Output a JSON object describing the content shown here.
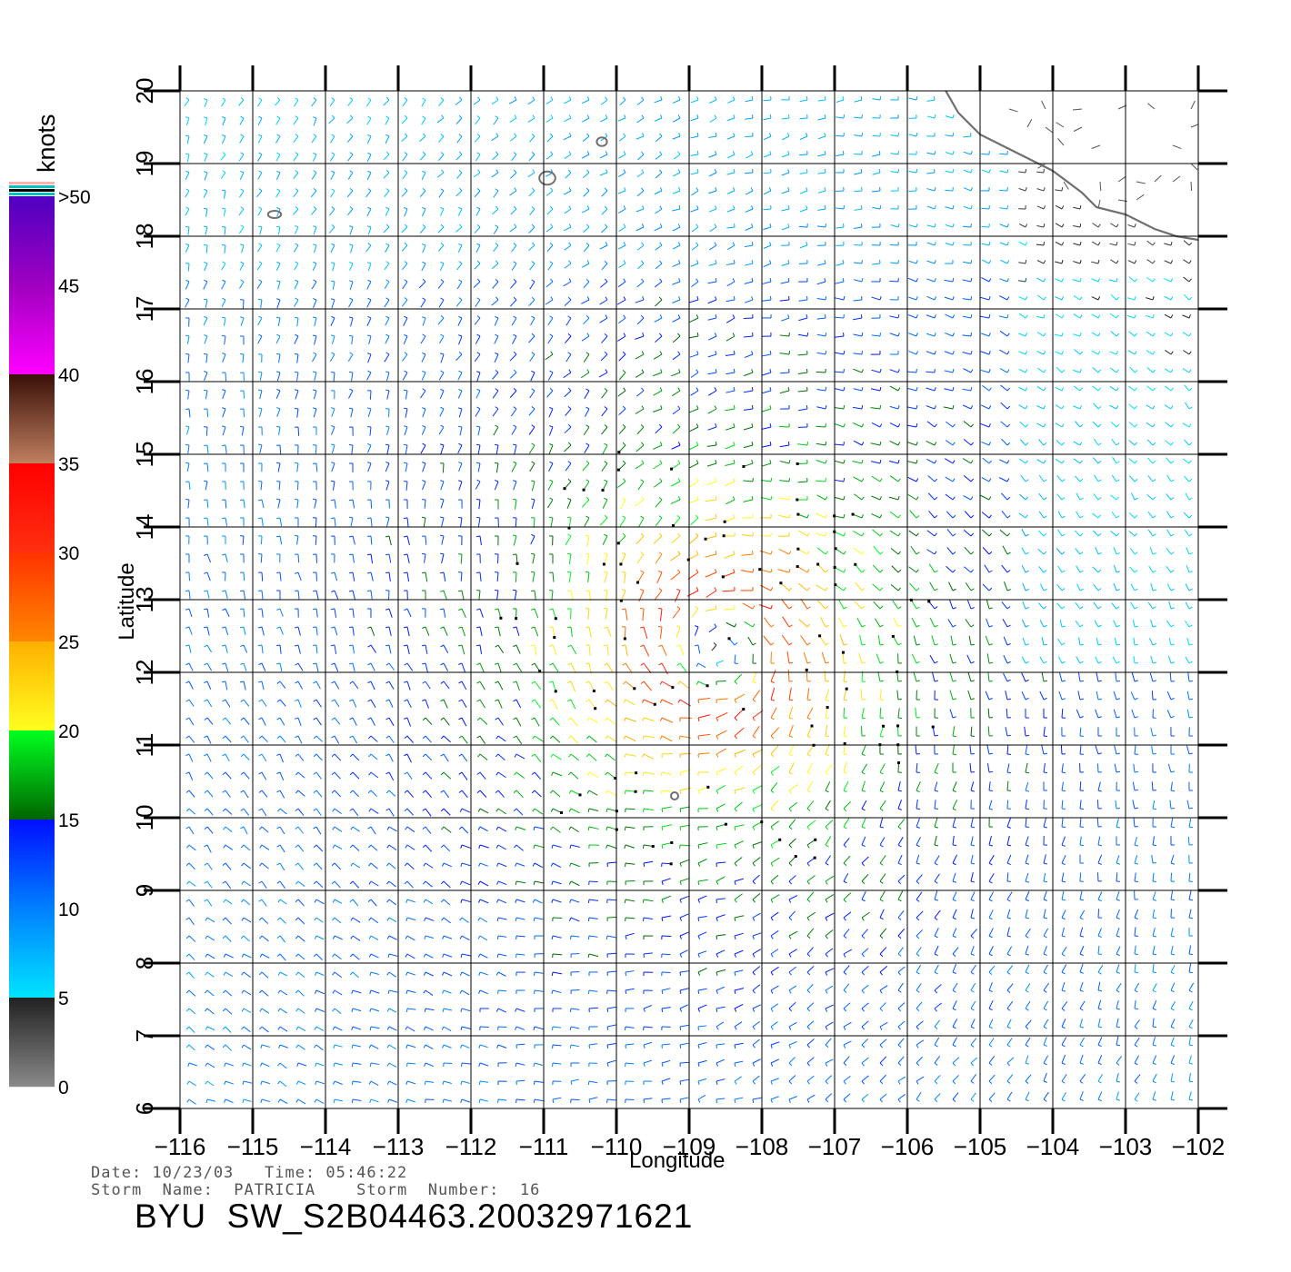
{
  "chart_data": {
    "type": "wind-vector-map",
    "title": "",
    "xlabel": "Longitude",
    "ylabel": "Latitude",
    "xlim": [
      -116,
      -102
    ],
    "ylim": [
      6,
      20
    ],
    "x_ticks": [
      -116,
      -115,
      -114,
      -113,
      -112,
      -111,
      -110,
      -109,
      -108,
      -107,
      -106,
      -105,
      -104,
      -103,
      -102
    ],
    "y_ticks": [
      6,
      7,
      8,
      9,
      10,
      11,
      12,
      13,
      14,
      15,
      16,
      17,
      18,
      19,
      20
    ],
    "grid": true,
    "wind_speed_units": "knots",
    "colorbar": {
      "label": "knots",
      "tick_labels": [
        "0",
        "5",
        "10",
        "15",
        "20",
        "25",
        "30",
        "35",
        "40",
        "45",
        ">50"
      ],
      "tick_values": [
        0,
        5,
        10,
        15,
        20,
        25,
        30,
        35,
        40,
        45,
        50
      ],
      "stops": [
        {
          "knots": 0,
          "color": "#8a8a8a"
        },
        {
          "knots": 5,
          "color": "#222222"
        },
        {
          "knots": 5.01,
          "color": "#00e5ff"
        },
        {
          "knots": 10,
          "color": "#0080ff"
        },
        {
          "knots": 15,
          "color": "#0010ff"
        },
        {
          "knots": 15.01,
          "color": "#006400"
        },
        {
          "knots": 20,
          "color": "#00ff20"
        },
        {
          "knots": 20.01,
          "color": "#ffff20"
        },
        {
          "knots": 25,
          "color": "#ffb000"
        },
        {
          "knots": 25.01,
          "color": "#ff8800"
        },
        {
          "knots": 30,
          "color": "#ff3300"
        },
        {
          "knots": 30.01,
          "color": "#ff3010"
        },
        {
          "knots": 35,
          "color": "#ff0000"
        },
        {
          "knots": 35.01,
          "color": "#c08060"
        },
        {
          "knots": 40,
          "color": "#3a1008"
        },
        {
          "knots": 40.01,
          "color": "#ff00ff"
        },
        {
          "knots": 45,
          "color": "#a000c0"
        },
        {
          "knots": 50,
          "color": "#5000c0"
        }
      ],
      "top_stripes": [
        "#ffb0b0",
        "#00c0c0",
        "#000000",
        "#00c0c0"
      ]
    },
    "wind_field": {
      "model": "cyclonic vortex",
      "center_lon": -108.6,
      "center_lat": 12.3,
      "max_wind_knots": 32,
      "radius_max_wind_deg": 0.9,
      "ambient_knots": 11,
      "grid_step_deg": 0.25,
      "rain_flagged": true
    },
    "coastline": [
      [
        -105.5,
        20.05
      ],
      [
        -105.3,
        19.7
      ],
      [
        -105.0,
        19.4
      ],
      [
        -104.6,
        19.2
      ],
      [
        -104.3,
        19.05
      ],
      [
        -104.0,
        18.9
      ],
      [
        -103.6,
        18.6
      ],
      [
        -103.4,
        18.4
      ],
      [
        -103.0,
        18.3
      ],
      [
        -102.6,
        18.1
      ],
      [
        -102.3,
        18.0
      ],
      [
        -102.0,
        17.95
      ]
    ],
    "islands": [
      {
        "name": "",
        "lon": -110.2,
        "lat": 19.3,
        "rx": 0.07,
        "ry": 0.06
      },
      {
        "name": "",
        "lon": -110.95,
        "lat": 18.8,
        "rx": 0.11,
        "ry": 0.09
      },
      {
        "name": "",
        "lon": -114.7,
        "lat": 18.3,
        "rx": 0.09,
        "ry": 0.05
      },
      {
        "name": "",
        "lon": -109.2,
        "lat": 10.3,
        "rx": 0.05,
        "ry": 0.05
      }
    ]
  },
  "footer": {
    "date_time_line": "Date: 10/23/03   Time: 05:46:22",
    "storm_line": "Storm  Name:  PATRICIA    Storm  Number:  16",
    "product_id": "BYU  SW_S2B04463.20032971621"
  }
}
